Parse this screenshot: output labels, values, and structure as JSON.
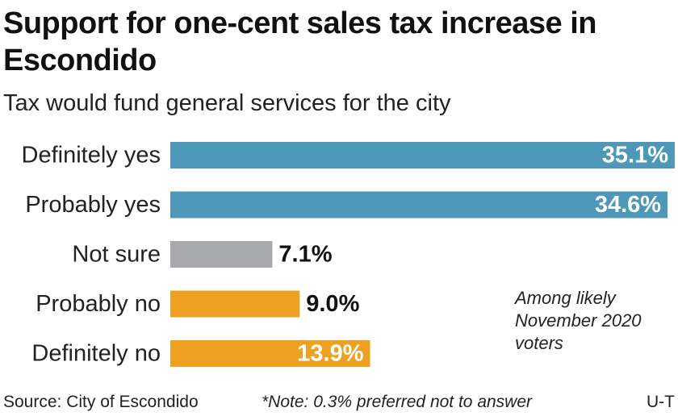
{
  "title": "Support for one-cent sales tax increase in Escondido",
  "subtitle": "Tax would fund general services for the city",
  "note": [
    "Among likely",
    "November 2020",
    "voters"
  ],
  "footer": {
    "source": "Source: City of Escondido",
    "footnote": "*Note: 0.3% preferred not to answer",
    "credit": "U-T"
  },
  "colors": {
    "yes": "#4d97b8",
    "unsure": "#a7a9ac",
    "no": "#eea021",
    "label_inside": "#ffffff",
    "label_outside": "#111111"
  },
  "chart_data": {
    "type": "bar",
    "orientation": "horizontal",
    "categories": [
      "Definitely yes",
      "Probably yes",
      "Not sure",
      "Probably no",
      "Definitely no"
    ],
    "values": [
      35.1,
      34.6,
      7.1,
      9.0,
      13.9
    ],
    "value_labels": [
      "35.1%",
      "34.6%",
      "7.1%",
      "9.0%",
      "13.9%"
    ],
    "groups": [
      "yes",
      "yes",
      "unsure",
      "no",
      "no"
    ],
    "unit": "%",
    "xlim": [
      0,
      35.1
    ],
    "grid": false,
    "legend": false
  }
}
